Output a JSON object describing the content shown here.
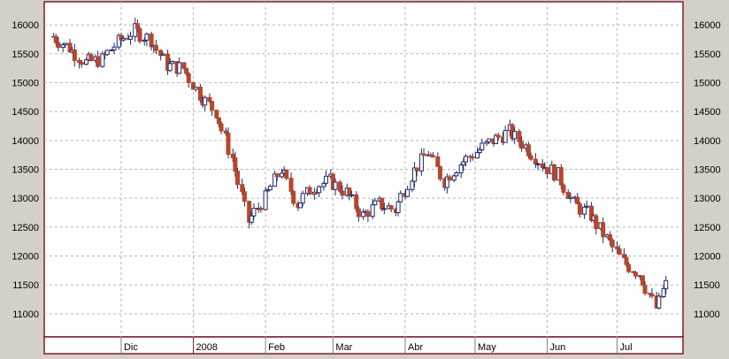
{
  "colors": {
    "background": "#d4d0c8",
    "plot_background": "#ffffff",
    "frame": "#7b1f2a",
    "grid": "#b8b8b8",
    "up_candle": "#1c2a6e",
    "down_candle": "#b5472b",
    "wick": "#1c2a6e"
  },
  "chart_data": {
    "type": "candlestick",
    "grid": true,
    "y_axis": {
      "ylim": [
        10600,
        16400
      ],
      "ticks": [
        11000,
        11500,
        12000,
        12500,
        13000,
        13500,
        14000,
        14500,
        15000,
        15500,
        16000
      ],
      "tick_labels_left": true,
      "tick_labels_right": true
    },
    "x_axis": {
      "time_range": [
        "2007-11-01",
        "2008-07-24"
      ],
      "month_labels": [
        {
          "date": "2007-12-01",
          "label": "Dic"
        },
        {
          "date": "2008-01-01",
          "label": "2008"
        },
        {
          "date": "2008-02-01",
          "label": "Feb"
        },
        {
          "date": "2008-03-01",
          "label": "Mar"
        },
        {
          "date": "2008-04-01",
          "label": "Abr"
        },
        {
          "date": "2008-05-01",
          "label": "May"
        },
        {
          "date": "2008-06-01",
          "label": "Jun"
        },
        {
          "date": "2008-07-01",
          "label": "Jul"
        }
      ],
      "year_divider_date": "2008-01-01"
    },
    "series_close_weekly": [
      {
        "date": "2007-11-02",
        "close": 15800
      },
      {
        "date": "2007-11-09",
        "close": 15600
      },
      {
        "date": "2007-11-16",
        "close": 15350
      },
      {
        "date": "2007-11-23",
        "close": 15400
      },
      {
        "date": "2007-11-30",
        "close": 15700
      },
      {
        "date": "2007-12-07",
        "close": 15900
      },
      {
        "date": "2007-12-14",
        "close": 15750
      },
      {
        "date": "2007-12-21",
        "close": 15300
      },
      {
        "date": "2007-12-28",
        "close": 15250
      },
      {
        "date": "2008-01-04",
        "close": 14800
      },
      {
        "date": "2008-01-11",
        "close": 14500
      },
      {
        "date": "2008-01-18",
        "close": 13700
      },
      {
        "date": "2008-01-25",
        "close": 12600
      },
      {
        "date": "2008-02-01",
        "close": 13000
      },
      {
        "date": "2008-02-08",
        "close": 13500
      },
      {
        "date": "2008-02-15",
        "close": 12900
      },
      {
        "date": "2008-02-22",
        "close": 13200
      },
      {
        "date": "2008-02-29",
        "close": 13300
      },
      {
        "date": "2008-03-07",
        "close": 13100
      },
      {
        "date": "2008-03-14",
        "close": 12700
      },
      {
        "date": "2008-03-21",
        "close": 12900
      },
      {
        "date": "2008-03-28",
        "close": 12800
      },
      {
        "date": "2008-04-04",
        "close": 13400
      },
      {
        "date": "2008-04-11",
        "close": 13800
      },
      {
        "date": "2008-04-18",
        "close": 13300
      },
      {
        "date": "2008-04-25",
        "close": 13600
      },
      {
        "date": "2008-05-02",
        "close": 13800
      },
      {
        "date": "2008-05-09",
        "close": 14000
      },
      {
        "date": "2008-05-16",
        "close": 14150
      },
      {
        "date": "2008-05-23",
        "close": 13900
      },
      {
        "date": "2008-05-30",
        "close": 13600
      },
      {
        "date": "2008-06-06",
        "close": 13400
      },
      {
        "date": "2008-06-13",
        "close": 12900
      },
      {
        "date": "2008-06-20",
        "close": 12700
      },
      {
        "date": "2008-06-27",
        "close": 12300
      },
      {
        "date": "2008-07-04",
        "close": 11900
      },
      {
        "date": "2008-07-11",
        "close": 11700
      },
      {
        "date": "2008-07-18",
        "close": 11100
      },
      {
        "date": "2008-07-24",
        "close": 11600
      }
    ]
  }
}
